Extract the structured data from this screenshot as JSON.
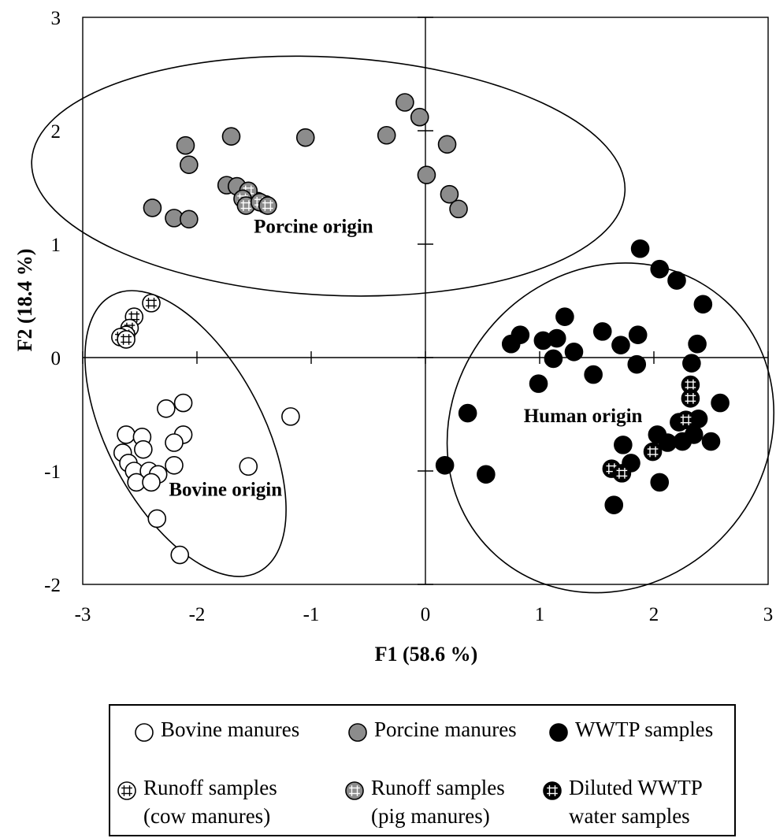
{
  "chart_data": {
    "type": "scatter",
    "title": "",
    "xlabel": "F1 (58.6 %)",
    "ylabel": "F2 (18.4 %)",
    "xlim": [
      -3,
      3
    ],
    "ylim": [
      -2,
      3
    ],
    "x_ticks": [
      "-3",
      "-2",
      "-1",
      "0",
      "1",
      "2",
      "3"
    ],
    "y_ticks": [
      "3",
      "2",
      "1",
      "0",
      "-1",
      "-2"
    ],
    "grid": false,
    "legend_position": "bottom",
    "group_labels": [
      {
        "text": "Porcine origin",
        "x": -0.98,
        "y": 1.1
      },
      {
        "text": "Human origin",
        "x": 1.38,
        "y": -0.57
      },
      {
        "text": "Bovine origin",
        "x": -1.75,
        "y": -1.22
      }
    ],
    "ellipses": [
      {
        "name": "Porcine origin",
        "cx": -0.85,
        "cy": 1.6,
        "rx": 2.6,
        "ry": 1.05,
        "rotation": 3
      },
      {
        "name": "Human origin",
        "cx": 1.62,
        "cy": -0.62,
        "rx": 1.5,
        "ry": 1.38,
        "rotation": -48
      },
      {
        "name": "Bovine origin",
        "cx": -2.1,
        "cy": -0.67,
        "rx": 0.68,
        "ry": 1.38,
        "rotation": -28
      }
    ],
    "series": [
      {
        "name": "Bovine manures",
        "marker": "open-circle",
        "points": [
          [
            -2.12,
            -0.4
          ],
          [
            -2.27,
            -0.45
          ],
          [
            -2.12,
            -0.68
          ],
          [
            -2.2,
            -0.75
          ],
          [
            -2.2,
            -0.95
          ],
          [
            -2.62,
            -0.68
          ],
          [
            -2.48,
            -0.7
          ],
          [
            -2.47,
            -0.81
          ],
          [
            -2.65,
            -0.84
          ],
          [
            -2.6,
            -0.93
          ],
          [
            -2.55,
            -1.0
          ],
          [
            -2.42,
            -1.0
          ],
          [
            -2.34,
            -1.03
          ],
          [
            -2.53,
            -1.1
          ],
          [
            -2.4,
            -1.1
          ],
          [
            -2.35,
            -1.42
          ],
          [
            -2.15,
            -1.74
          ],
          [
            -1.55,
            -0.96
          ],
          [
            -1.18,
            -0.52
          ]
        ]
      },
      {
        "name": "Porcine manures",
        "marker": "gray-circle",
        "points": [
          [
            -0.18,
            2.25
          ],
          [
            -0.05,
            2.12
          ],
          [
            -0.34,
            1.96
          ],
          [
            0.19,
            1.88
          ],
          [
            -1.05,
            1.94
          ],
          [
            -1.7,
            1.95
          ],
          [
            -2.1,
            1.87
          ],
          [
            -2.07,
            1.7
          ],
          [
            -1.74,
            1.52
          ],
          [
            -1.65,
            1.51
          ],
          [
            -1.58,
            1.38
          ],
          [
            -1.4,
            1.35
          ],
          [
            -1.47,
            1.38
          ],
          [
            0.01,
            1.61
          ],
          [
            0.21,
            1.44
          ],
          [
            0.29,
            1.31
          ],
          [
            -2.39,
            1.32
          ],
          [
            -2.2,
            1.23
          ],
          [
            -2.07,
            1.22
          ]
        ]
      },
      {
        "name": "WWTP samples",
        "marker": "filled-circle",
        "points": [
          [
            1.88,
            0.96
          ],
          [
            2.05,
            0.78
          ],
          [
            2.2,
            0.68
          ],
          [
            2.43,
            0.47
          ],
          [
            1.22,
            0.36
          ],
          [
            1.55,
            0.23
          ],
          [
            1.86,
            0.2
          ],
          [
            0.83,
            0.2
          ],
          [
            0.75,
            0.12
          ],
          [
            1.03,
            0.15
          ],
          [
            1.15,
            0.17
          ],
          [
            1.71,
            0.11
          ],
          [
            2.38,
            0.12
          ],
          [
            1.3,
            0.05
          ],
          [
            1.12,
            -0.01
          ],
          [
            1.85,
            -0.06
          ],
          [
            2.33,
            -0.05
          ],
          [
            1.47,
            -0.15
          ],
          [
            0.99,
            -0.23
          ],
          [
            2.58,
            -0.4
          ],
          [
            0.37,
            -0.49
          ],
          [
            2.22,
            -0.57
          ],
          [
            2.39,
            -0.54
          ],
          [
            2.03,
            -0.68
          ],
          [
            2.35,
            -0.68
          ],
          [
            2.12,
            -0.75
          ],
          [
            2.25,
            -0.74
          ],
          [
            2.5,
            -0.74
          ],
          [
            1.73,
            -0.77
          ],
          [
            1.8,
            -0.93
          ],
          [
            0.17,
            -0.95
          ],
          [
            0.53,
            -1.03
          ],
          [
            2.05,
            -1.1
          ],
          [
            1.65,
            -1.3
          ]
        ]
      },
      {
        "name": "Runoff samples (cow manures)",
        "marker": "open-cross-circle",
        "points": [
          [
            -2.4,
            0.48
          ],
          [
            -2.55,
            0.36
          ],
          [
            -2.59,
            0.26
          ],
          [
            -2.62,
            0.2
          ],
          [
            -2.67,
            0.18
          ],
          [
            -2.62,
            0.16
          ]
        ]
      },
      {
        "name": "Runoff samples (pig manures)",
        "marker": "gray-cross-circle",
        "points": [
          [
            -1.55,
            1.47
          ],
          [
            -1.6,
            1.4
          ],
          [
            -1.57,
            1.34
          ],
          [
            -1.45,
            1.37
          ],
          [
            -1.38,
            1.34
          ]
        ]
      },
      {
        "name": "Diluted WWTP water samples",
        "marker": "filled-cross-circle",
        "points": [
          [
            2.32,
            -0.24
          ],
          [
            2.32,
            -0.36
          ],
          [
            2.28,
            -0.55
          ],
          [
            1.99,
            -0.83
          ],
          [
            1.63,
            -0.98
          ],
          [
            1.72,
            -1.02
          ]
        ]
      }
    ]
  },
  "legend": [
    {
      "label": "Bovine manures",
      "marker": "open-circle"
    },
    {
      "label": "Porcine manures",
      "marker": "gray-circle"
    },
    {
      "label": "WWTP samples",
      "marker": "filled-circle"
    },
    {
      "label": "Runoff samples\n(cow manures)",
      "marker": "open-cross-circle"
    },
    {
      "label": "Runoff samples\n(pig manures)",
      "marker": "gray-cross-circle"
    },
    {
      "label": "Diluted WWTP\nwater samples",
      "marker": "filled-cross-circle"
    }
  ],
  "colors": {
    "gray_fill": "#8c8c8c",
    "black_fill": "#000000",
    "open_fill": "#ffffff",
    "line": "#000000"
  }
}
